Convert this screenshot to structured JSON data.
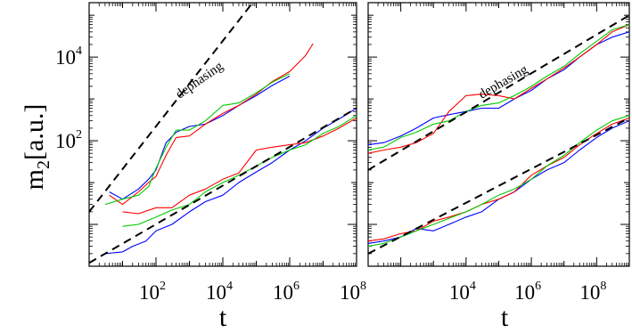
{
  "chart_data": [
    {
      "type": "line",
      "panel": "left",
      "xscale": "log",
      "yscale": "log",
      "xlim": [
        1,
        100000000
      ],
      "ylim": [
        0.1,
        200000
      ],
      "xlabel": "t",
      "ylabel": "m",
      "ylabel_subscript": "2",
      "ylabel_suffix": "[a.u.]",
      "x_ticks": [
        {
          "base": "10",
          "exp": "2",
          "value": 100
        },
        {
          "base": "10",
          "exp": "4",
          "value": 10000
        },
        {
          "base": "10",
          "exp": "6",
          "value": 1000000
        },
        {
          "base": "10",
          "exp": "8",
          "value": 100000000
        }
      ],
      "y_ticks": [
        {
          "base": "10",
          "exp": "2",
          "value": 100
        },
        {
          "base": "10",
          "exp": "4",
          "value": 10000
        }
      ],
      "annotations": [
        {
          "text": "dephasing",
          "x": 500,
          "y": 1000,
          "rotation": -35
        }
      ],
      "groups": [
        {
          "dashed_fit": {
            "x": [
              1,
              100000000
            ],
            "y": [
              2,
              300000000
            ]
          },
          "series": [
            {
              "color": "#0000ff",
              "x": [
                4,
                10,
                30,
                60,
                100,
                200,
                400,
                1000,
                3000,
                10000,
                30000,
                100000,
                300000,
                1000000
              ],
              "y": [
                6,
                4,
                7,
                12,
                20,
                90,
                160,
                220,
                250,
                400,
                700,
                1200,
                2100,
                3500
              ]
            },
            {
              "color": "#ff0000",
              "x": [
                4,
                10,
                30,
                60,
                100,
                200,
                400,
                1000,
                3000,
                10000,
                30000,
                100000,
                300000,
                1000000,
                3000000,
                5000000
              ],
              "y": [
                5,
                3,
                6,
                10,
                14,
                45,
                120,
                130,
                250,
                450,
                700,
                1300,
                2600,
                4500,
                11000,
                21000
              ]
            },
            {
              "color": "#00cc00",
              "x": [
                3,
                10,
                30,
                60,
                100,
                200,
                400,
                1000,
                3000,
                10000,
                30000,
                100000,
                300000,
                1000000
              ],
              "y": [
                3,
                4,
                5,
                8,
                22,
                70,
                180,
                180,
                300,
                700,
                800,
                1400,
                2500,
                4000
              ]
            }
          ]
        },
        {
          "dashed_fit": {
            "x": [
              1,
              100000000
            ],
            "y": [
              0.12,
              600
            ]
          },
          "series": [
            {
              "color": "#0000ff",
              "x": [
                3,
                10,
                20,
                50,
                100,
                300,
                1000,
                3000,
                10000,
                30000,
                100000,
                300000,
                1000000,
                3000000,
                10000000,
                30000000,
                100000000
              ],
              "y": [
                0.2,
                0.22,
                0.3,
                0.4,
                0.7,
                1,
                2,
                3.5,
                5,
                10,
                18,
                30,
                60,
                100,
                200,
                330,
                600
              ]
            },
            {
              "color": "#ff0000",
              "x": [
                10,
                30,
                100,
                300,
                1000,
                3000,
                10000,
                30000,
                100000,
                300000,
                1000000,
                3000000,
                10000000,
                30000000,
                100000000
              ],
              "y": [
                2,
                1.8,
                2.5,
                2.5,
                5,
                7,
                12,
                17,
                60,
                70,
                80,
                90,
                130,
                200,
                350
              ]
            },
            {
              "color": "#00cc00",
              "x": [
                10,
                30,
                100,
                300,
                1000,
                3000,
                10000,
                30000,
                100000,
                300000,
                1000000,
                3000000,
                10000000,
                30000000,
                100000000
              ],
              "y": [
                0.9,
                1,
                1.5,
                2.2,
                3,
                6,
                10,
                15,
                25,
                40,
                60,
                80,
                150,
                220,
                400
              ]
            }
          ]
        }
      ]
    },
    {
      "type": "line",
      "panel": "right",
      "xscale": "log",
      "yscale": "log",
      "xlim": [
        10,
        1000000000
      ],
      "ylim": [
        0.1,
        200000
      ],
      "xlabel": "t",
      "x_ticks": [
        {
          "base": "10",
          "exp": "4",
          "value": 10000
        },
        {
          "base": "10",
          "exp": "6",
          "value": 1000000
        },
        {
          "base": "10",
          "exp": "8",
          "value": 100000000
        }
      ],
      "annotations": [
        {
          "text": "dephasing",
          "x": 30000,
          "y": 1000,
          "rotation": -30
        }
      ],
      "groups": [
        {
          "dashed_fit": {
            "x": [
              10,
              1000000000
            ],
            "y": [
              20,
              100000
            ]
          },
          "series": [
            {
              "color": "#0000ff",
              "x": [
                10,
                30,
                100,
                300,
                1000,
                3000,
                10000,
                30000,
                100000,
                300000,
                1000000,
                3000000,
                10000000,
                30000000,
                100000000,
                300000000,
                1000000000
              ],
              "y": [
                80,
                90,
                130,
                200,
                350,
                420,
                500,
                600,
                600,
                1000,
                1600,
                3000,
                5000,
                10000,
                20000,
                30000,
                40000
              ]
            },
            {
              "color": "#ff0000",
              "x": [
                10,
                30,
                100,
                300,
                1000,
                3000,
                10000,
                30000,
                100000,
                300000,
                1000000,
                3000000,
                10000000,
                30000000,
                100000000,
                300000000,
                1000000000
              ],
              "y": [
                50,
                60,
                70,
                90,
                150,
                500,
                1200,
                1300,
                1200,
                1000,
                1800,
                3000,
                5500,
                10000,
                20000,
                40000,
                60000
              ]
            },
            {
              "color": "#00cc00",
              "x": [
                10,
                30,
                100,
                300,
                1000,
                3000,
                10000,
                30000,
                100000,
                300000,
                1000000,
                3000000,
                10000000,
                30000000,
                100000000,
                300000000,
                1000000000
              ],
              "y": [
                60,
                70,
                120,
                160,
                250,
                300,
                500,
                700,
                800,
                1200,
                2000,
                3500,
                6000,
                12000,
                24000,
                45000,
                60000
              ]
            }
          ]
        },
        {
          "dashed_fit": {
            "x": [
              10,
              1000000000
            ],
            "y": [
              0.2,
              350
            ]
          },
          "series": [
            {
              "color": "#0000ff",
              "x": [
                10,
                30,
                100,
                300,
                1000,
                3000,
                10000,
                30000,
                100000,
                300000,
                1000000,
                3000000,
                10000000,
                30000000,
                100000000,
                300000000,
                1000000000
              ],
              "y": [
                0.35,
                0.4,
                0.5,
                0.8,
                0.7,
                1,
                1.5,
                2,
                4,
                6,
                12,
                20,
                30,
                60,
                120,
                200,
                300
              ]
            },
            {
              "color": "#ff0000",
              "x": [
                10,
                30,
                100,
                300,
                1000,
                3000,
                10000,
                30000,
                100000,
                300000,
                1000000,
                3000000,
                10000000,
                30000000,
                100000000,
                300000000,
                1000000000
              ],
              "y": [
                0.4,
                0.45,
                0.6,
                0.7,
                1.2,
                1.5,
                2,
                3,
                4,
                6,
                15,
                25,
                40,
                80,
                150,
                250,
                350
              ]
            },
            {
              "color": "#00cc00",
              "x": [
                10,
                30,
                100,
                300,
                1000,
                3000,
                10000,
                30000,
                100000,
                300000,
                1000000,
                3000000,
                10000000,
                30000000,
                100000000,
                300000000,
                1000000000
              ],
              "y": [
                0.3,
                0.35,
                0.5,
                0.7,
                1,
                1.4,
                2,
                3,
                5,
                7,
                12,
                25,
                45,
                90,
                180,
                300,
                400
              ]
            }
          ]
        }
      ]
    }
  ]
}
